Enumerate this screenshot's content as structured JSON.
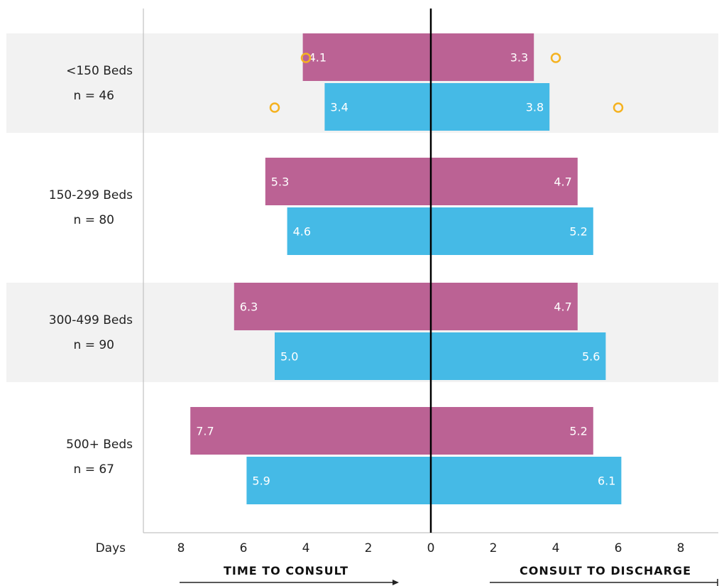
{
  "chart_data": {
    "type": "bar",
    "orientation": "horizontal-diverging",
    "groups": [
      {
        "name": "<150 Beds",
        "n_label": "n = 46"
      },
      {
        "name": "150-299 Beds",
        "n_label": "n = 80"
      },
      {
        "name": "300-499 Beds",
        "n_label": "n = 90"
      },
      {
        "name": "500+ Beds",
        "n_label": "n = 67"
      }
    ],
    "series": [
      {
        "color": "#bb6294",
        "time_to_consult": [
          4.1,
          5.3,
          6.3,
          7.7
        ],
        "time_to_consult_labels": [
          "4.1",
          "5.3",
          "6.3",
          "7.7"
        ],
        "consult_to_discharge": [
          3.3,
          4.7,
          4.7,
          5.2
        ],
        "consult_to_discharge_labels": [
          "3.3",
          "4.7",
          "4.7",
          "5.2"
        ]
      },
      {
        "color": "#45bae6",
        "time_to_consult": [
          3.4,
          4.6,
          5.0,
          5.9
        ],
        "time_to_consult_labels": [
          "3.4",
          "4.6",
          "5.0",
          "5.9"
        ],
        "consult_to_discharge": [
          3.8,
          5.2,
          5.6,
          6.1
        ],
        "consult_to_discharge_labels": [
          "3.8",
          "5.2",
          "5.6",
          "6.1"
        ]
      }
    ],
    "markers": [
      {
        "group": 0,
        "series": 0,
        "side": "left",
        "value": 4.0
      },
      {
        "group": 0,
        "series": 0,
        "side": "right",
        "value": 4.0
      },
      {
        "group": 0,
        "series": 1,
        "side": "left",
        "value": 5.0
      },
      {
        "group": 0,
        "series": 1,
        "side": "right",
        "value": 6.0
      }
    ],
    "marker_color": "#f5b220",
    "x_axis": {
      "label": "Days",
      "range": [
        -9,
        9
      ],
      "ticks": [
        -8,
        -6,
        -4,
        -2,
        0,
        2,
        4,
        6,
        8
      ],
      "tick_labels": [
        "8",
        "6",
        "4",
        "2",
        "0",
        "2",
        "4",
        "6",
        "8"
      ]
    },
    "left_section_title": "TIME TO CONSULT",
    "right_section_title": "CONSULT TO DISCHARGE",
    "band_color": "#f2f2f2"
  }
}
